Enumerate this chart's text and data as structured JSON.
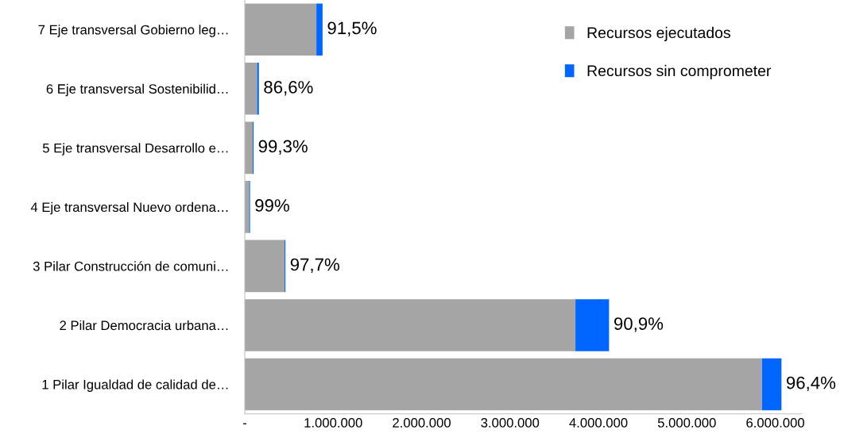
{
  "chart_data": {
    "type": "bar",
    "orientation": "horizontal",
    "stacked": true,
    "categories": [
      "7 Eje transversal Gobierno leg…",
      "6 Eje transversal Sostenibilid…",
      "5 Eje transversal Desarrollo e…",
      "4 Eje transversal Nuevo ordena…",
      "3 Pilar Construcción de comuni…",
      "2 Pilar Democracia urbana…",
      "1 Pilar Igualdad de calidad de…"
    ],
    "series": [
      {
        "name": "Recursos ejecutados",
        "color": "#a5a5a5",
        "values": [
          810000,
          140000,
          90000,
          50000,
          450000,
          3740000,
          5850000
        ]
      },
      {
        "name": "Recursos sin comprometer",
        "color": "#0066ff",
        "values": [
          70000,
          20000,
          10000,
          10000,
          10000,
          380000,
          220000
        ]
      }
    ],
    "xlim": [
      0,
      6300000
    ],
    "xticks": [
      {
        "value": 0,
        "label": "-"
      },
      {
        "value": 1000000,
        "label": "1.000.000"
      },
      {
        "value": 2000000,
        "label": "2.000.000"
      },
      {
        "value": 3000000,
        "label": "3.000.000"
      },
      {
        "value": 4000000,
        "label": "4.000.000"
      },
      {
        "value": 5000000,
        "label": "5.000.000"
      },
      {
        "value": 6000000,
        "label": "6.000.000"
      }
    ],
    "annotations": [
      "91,5%",
      "86,6%",
      "99,3%",
      "99%",
      "97,7%",
      "90,9%",
      "96,4%"
    ],
    "legend": "top right"
  }
}
